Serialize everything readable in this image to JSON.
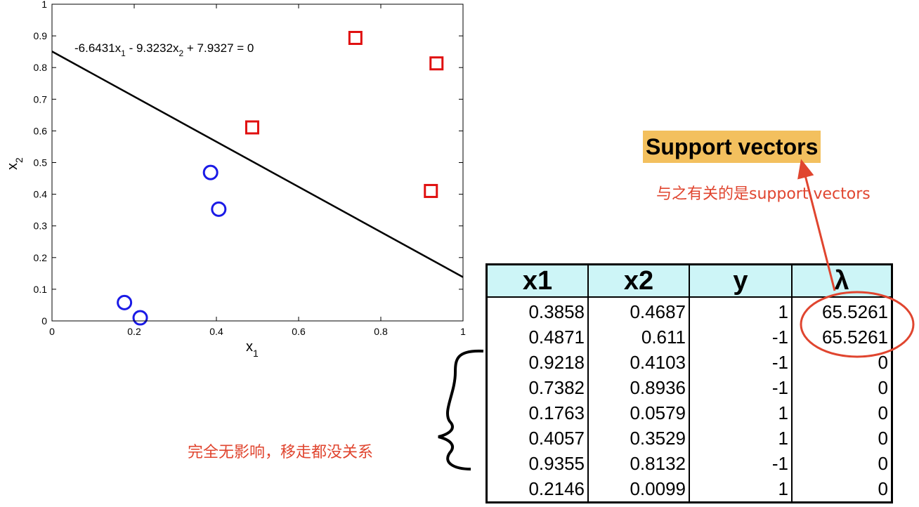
{
  "chart_data": {
    "type": "scatter",
    "xlabel": "x",
    "xlabel_sub": "1",
    "ylabel": "x",
    "ylabel_sub": "2",
    "xlim": [
      0,
      1
    ],
    "ylim": [
      0,
      1
    ],
    "xticks": [
      "0",
      "0.2",
      "0.4",
      "0.6",
      "0.8",
      "1"
    ],
    "xtick_values": [
      0,
      0.2,
      0.4,
      0.6,
      0.8,
      1
    ],
    "yticks": [
      "0",
      "0.1",
      "0.2",
      "0.3",
      "0.4",
      "0.5",
      "0.6",
      "0.7",
      "0.8",
      "0.9",
      "1"
    ],
    "ytick_values": [
      0,
      0.1,
      0.2,
      0.3,
      0.4,
      0.5,
      0.6,
      0.7,
      0.8,
      0.9,
      1
    ],
    "series": [
      {
        "marker": "circle",
        "color": "#1a1ae6",
        "points": [
          [
            0.3858,
            0.4687
          ],
          [
            0.4057,
            0.3529
          ],
          [
            0.1763,
            0.0579
          ],
          [
            0.2146,
            0.0099
          ]
        ]
      },
      {
        "marker": "square",
        "color": "#e01010",
        "points": [
          [
            0.4871,
            0.611
          ],
          [
            0.9218,
            0.4103
          ],
          [
            0.7382,
            0.8936
          ],
          [
            0.9355,
            0.8132
          ]
        ]
      }
    ],
    "decision_boundary": {
      "w1": -6.6431,
      "w2": -9.3232,
      "b": 7.9327
    },
    "equation": {
      "p1": "-6.6431x",
      "s1": "1",
      "p2": " - 9.3232x",
      "s2": "2",
      "p3": " + 7.9327 = 0"
    }
  },
  "annotations": {
    "support_vectors": "Support vectors",
    "sv_note": "与之有关的是support vectors",
    "zero_note": "完全无影响，移走都没关系"
  },
  "accent_color": "#e0452f",
  "table": {
    "headers": [
      "x1",
      "x2",
      "y",
      "λ"
    ],
    "rows": [
      [
        "0.3858",
        "0.4687",
        "1",
        "65.5261"
      ],
      [
        "0.4871",
        "0.611",
        "-1",
        "65.5261"
      ],
      [
        "0.9218",
        "0.4103",
        "-1",
        "0"
      ],
      [
        "0.7382",
        "0.8936",
        "-1",
        "0"
      ],
      [
        "0.1763",
        "0.0579",
        "1",
        "0"
      ],
      [
        "0.4057",
        "0.3529",
        "1",
        "0"
      ],
      [
        "0.9355",
        "0.8132",
        "-1",
        "0"
      ],
      [
        "0.2146",
        "0.0099",
        "1",
        "0"
      ]
    ]
  }
}
